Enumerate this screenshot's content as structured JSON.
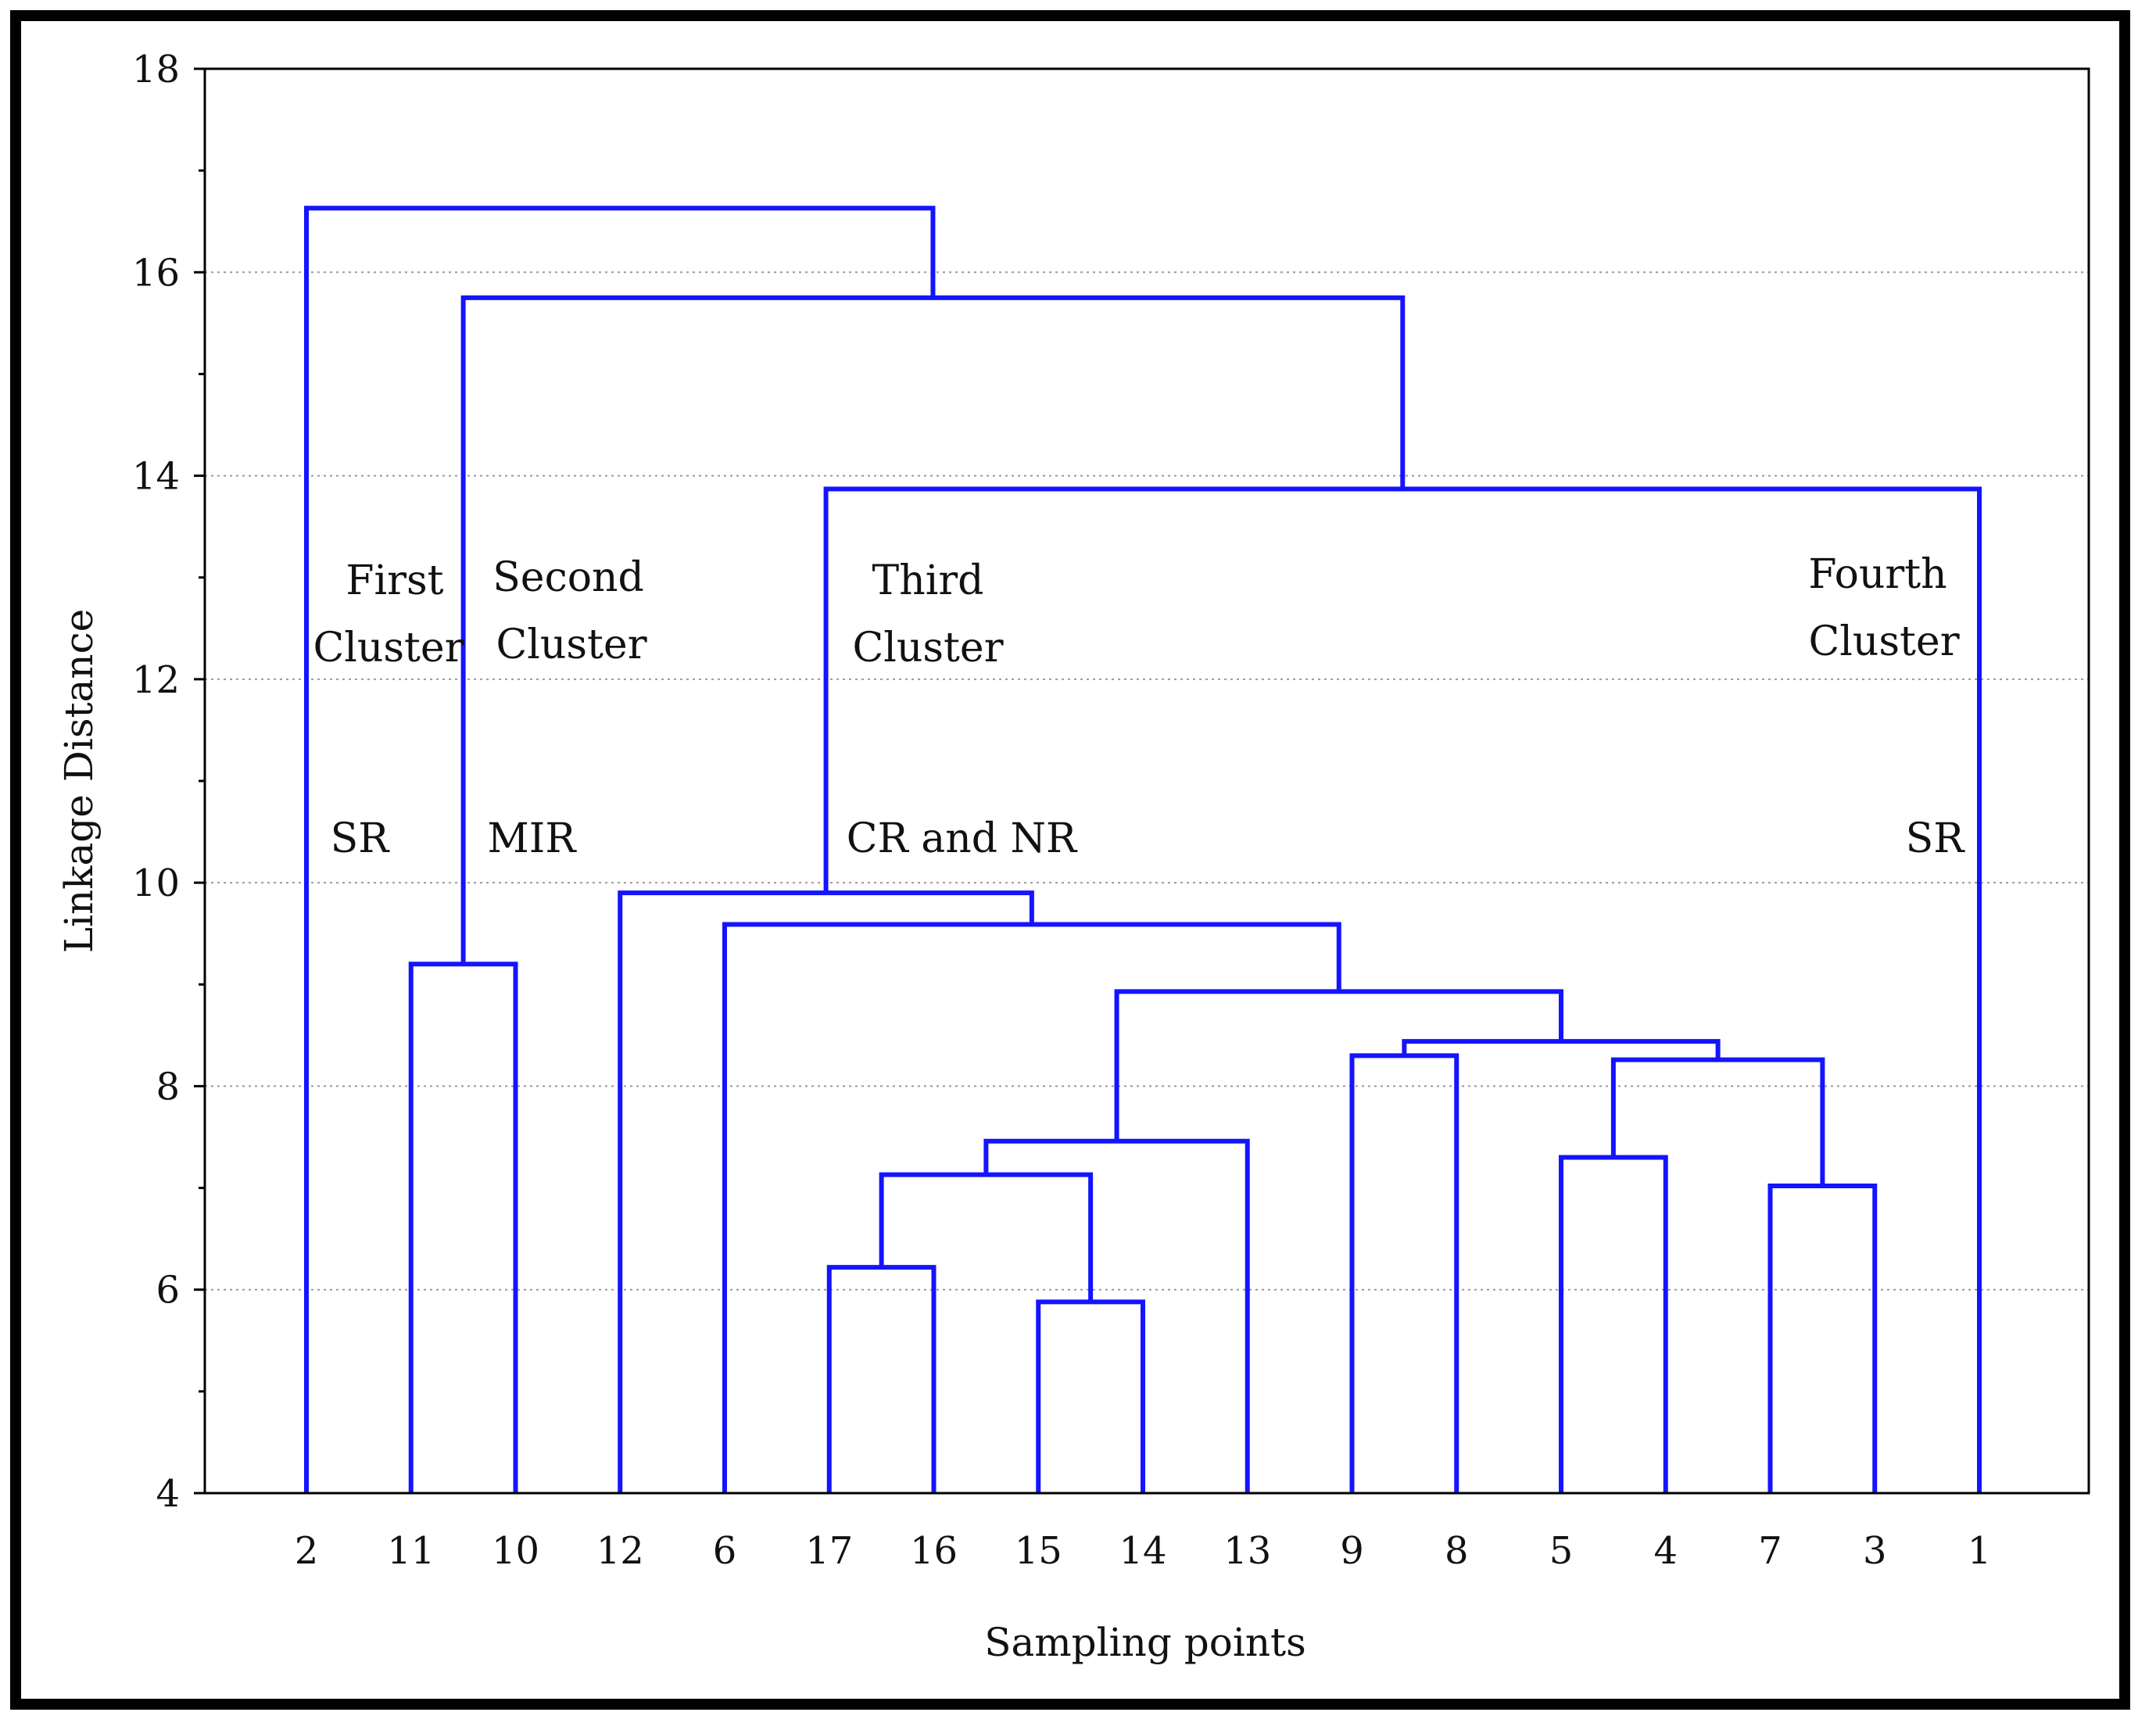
{
  "chart_data": {
    "type": "dendrogram",
    "title": "",
    "xlabel": "Sampling points",
    "ylabel": "Linkage Distance",
    "ylim": [
      4,
      18
    ],
    "yticks": [
      "4",
      "6",
      "8",
      "10",
      "12",
      "14",
      "16",
      "18"
    ],
    "ytick_values": [
      4,
      6,
      8,
      10,
      12,
      14,
      16,
      18
    ],
    "grid": "horizontal dotted",
    "line_color": "#1414ff",
    "leaf_order": [
      "2",
      "11",
      "10",
      "12",
      "6",
      "17",
      "16",
      "15",
      "14",
      "13",
      "9",
      "8",
      "5",
      "4",
      "7",
      "3",
      "1"
    ],
    "merges": [
      {
        "left": "15",
        "right": "14",
        "distance": 5.88
      },
      {
        "left": "17",
        "right": "16",
        "distance": 6.22
      },
      {
        "left": "7",
        "right": "3",
        "distance": 7.02
      },
      {
        "left": "17,16",
        "right": "15,14",
        "distance": 7.13
      },
      {
        "left": "5",
        "right": "4",
        "distance": 7.3
      },
      {
        "left": "17,16,15,14",
        "right": "13",
        "distance": 7.46
      },
      {
        "left": "5,4",
        "right": "7,3",
        "distance": 8.26
      },
      {
        "left": "9",
        "right": "8",
        "distance": 8.3
      },
      {
        "left": "9,8",
        "right": "5,4,7,3",
        "distance": 8.44
      },
      {
        "left": "17,16,15,14,13",
        "right": "9,8,5,4,7,3",
        "distance": 8.93
      },
      {
        "left": "11",
        "right": "10",
        "distance": 9.2
      },
      {
        "left": "6",
        "right": "17,16,15,14,13,9,8,5,4,7,3",
        "distance": 9.59
      },
      {
        "left": "12",
        "right": "6,17,16,15,14,13,9,8,5,4,7,3",
        "distance": 9.9
      },
      {
        "left": "12,...,3",
        "right": "1",
        "distance": 13.87
      },
      {
        "left": "11,10",
        "right": "12,...,1",
        "distance": 15.75
      },
      {
        "left": "2",
        "right": "11,...,1",
        "distance": 16.63
      }
    ],
    "annotations": [
      {
        "id": "first-1",
        "text": "First"
      },
      {
        "id": "first-2",
        "text": "Cluster"
      },
      {
        "id": "second-1",
        "text": "Second"
      },
      {
        "id": "second-2",
        "text": "Cluster"
      },
      {
        "id": "third-1",
        "text": "Third"
      },
      {
        "id": "third-2",
        "text": "Cluster"
      },
      {
        "id": "fourth-1",
        "text": "Fourth"
      },
      {
        "id": "fourth-2",
        "text": "Cluster"
      },
      {
        "id": "sr-1",
        "text": "SR"
      },
      {
        "id": "mir",
        "text": "MIR"
      },
      {
        "id": "cr-nr",
        "text": "CR and NR"
      },
      {
        "id": "sr-2",
        "text": "SR"
      }
    ]
  }
}
